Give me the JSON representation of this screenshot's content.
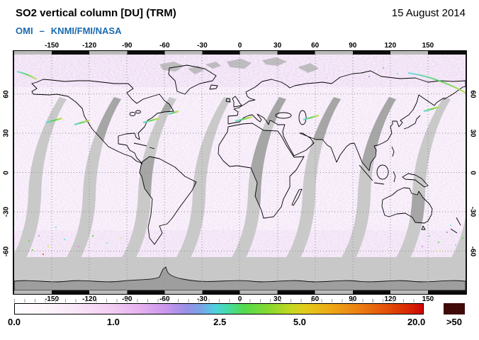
{
  "header": {
    "title": "SO2 vertical column [DU] (TRM)",
    "instrument": "OMI",
    "separator": "–",
    "institutes": "KNMI/FMI/NASA",
    "date": "15 August 2014"
  },
  "axes": {
    "lon_labels": [
      "-150",
      "-120",
      "-90",
      "-60",
      "-30",
      "0",
      "30",
      "60",
      "90",
      "120",
      "150"
    ],
    "lat_labels": [
      "60",
      "30",
      "0",
      "-30",
      "-60"
    ]
  },
  "colorbar": {
    "labels": [
      {
        "text": "0.0",
        "u": 0.0
      },
      {
        "text": "1.0",
        "u": 0.242
      },
      {
        "text": "2.5",
        "u": 0.502
      },
      {
        "text": "5.0",
        "u": 0.697
      },
      {
        "text": "20.0",
        "u": 0.982
      }
    ],
    "overflow_label": ">50",
    "overflow_color": "#3f0a07",
    "gradient_stops": [
      {
        "u": 0,
        "color": "#ffffff"
      },
      {
        "u": 7,
        "color": "#fdf6fc"
      },
      {
        "u": 15,
        "color": "#f9e6f7"
      },
      {
        "u": 24,
        "color": "#f2ccf2"
      },
      {
        "u": 31,
        "color": "#e5aff0"
      },
      {
        "u": 37,
        "color": "#c997ec"
      },
      {
        "u": 42,
        "color": "#9a8fe6"
      },
      {
        "u": 46,
        "color": "#74a8e8"
      },
      {
        "u": 49,
        "color": "#4fd0e2"
      },
      {
        "u": 52,
        "color": "#46dcaa"
      },
      {
        "u": 56,
        "color": "#53da50"
      },
      {
        "u": 62,
        "color": "#85d92f"
      },
      {
        "u": 68,
        "color": "#c8d621"
      },
      {
        "u": 71,
        "color": "#e2cb1c"
      },
      {
        "u": 77,
        "color": "#edaa16"
      },
      {
        "u": 84,
        "color": "#ec8113"
      },
      {
        "u": 91,
        "color": "#e45107"
      },
      {
        "u": 97,
        "color": "#d72304"
      },
      {
        "u": 100,
        "color": "#ce0303"
      }
    ]
  },
  "map_colors": {
    "orbit_gap_swath": "#c9c9c9",
    "orbit_gap_over_land": "#a6a6a6",
    "polar_no_data_light": "#c8c8c8",
    "antarctica_dark": "#9e9e9e",
    "coastline": "#000000",
    "frame_zebra_gray": "#b9b9b9",
    "subtitle_blue": "#1a6ab0"
  },
  "chart_data": {
    "type": "heatmap",
    "title": "SO2 vertical column [DU] (TRM)",
    "instrument": "OMI",
    "institutes": "KNMI/FMI/NASA",
    "date": "15 August 2014",
    "units": "DU",
    "projection": "equirectangular",
    "lon_range": [
      -180,
      180
    ],
    "lat_range": [
      -90,
      90
    ],
    "lon_ticks": [
      -150,
      -120,
      -90,
      -60,
      -30,
      0,
      30,
      60,
      90,
      120,
      150
    ],
    "lat_ticks": [
      60,
      30,
      0,
      -30,
      -60
    ],
    "colorbar_scale_values": [
      0.0,
      1.0,
      2.5,
      5.0,
      20.0
    ],
    "colorbar_overflow_threshold": 50,
    "colorbar_scale_nonlinear_positions": [
      0.0,
      0.242,
      0.502,
      0.697,
      0.982
    ],
    "grid": "dotted every 30 degrees",
    "legend_position": "bottom"
  }
}
